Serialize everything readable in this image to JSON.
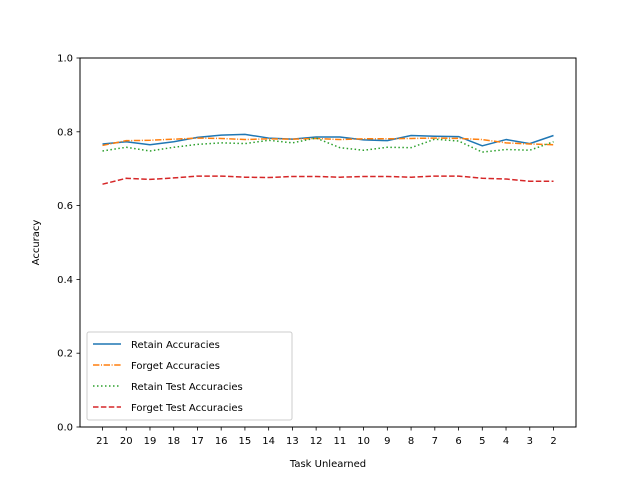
{
  "chart_data": {
    "type": "line",
    "xlabel": "Task Unlearned",
    "ylabel": "Accuracy",
    "categories": [
      "21",
      "20",
      "19",
      "18",
      "17",
      "16",
      "15",
      "14",
      "13",
      "12",
      "11",
      "10",
      "9",
      "8",
      "7",
      "6",
      "5",
      "4",
      "3",
      "2"
    ],
    "ylim": [
      0.0,
      1.0
    ],
    "yticks": [
      "0.0",
      "0.2",
      "0.4",
      "0.6",
      "0.8",
      "1.0"
    ],
    "grid": false,
    "legend_placement": "lower-left",
    "series": [
      {
        "name": "Retain Accuracies",
        "color": "#1f77b4",
        "dash": "solid",
        "values": [
          0.767,
          0.773,
          0.765,
          0.773,
          0.785,
          0.791,
          0.793,
          0.783,
          0.78,
          0.786,
          0.786,
          0.778,
          0.776,
          0.79,
          0.788,
          0.787,
          0.762,
          0.779,
          0.768,
          0.79
        ]
      },
      {
        "name": "Forget Accuracies",
        "color": "#ff7f0e",
        "dash": "dashdot",
        "values": [
          0.763,
          0.776,
          0.777,
          0.78,
          0.783,
          0.782,
          0.779,
          0.781,
          0.78,
          0.782,
          0.779,
          0.781,
          0.781,
          0.782,
          0.783,
          0.782,
          0.779,
          0.77,
          0.767,
          0.765
        ]
      },
      {
        "name": "Retain Test Accuracies",
        "color": "#2ca02c",
        "dash": "dotted",
        "values": [
          0.748,
          0.758,
          0.748,
          0.758,
          0.766,
          0.77,
          0.768,
          0.777,
          0.77,
          0.783,
          0.757,
          0.75,
          0.758,
          0.757,
          0.78,
          0.775,
          0.745,
          0.752,
          0.75,
          0.773
        ]
      },
      {
        "name": "Forget Test Accuracies",
        "color": "#d62728",
        "dash": "dashed",
        "values": [
          0.658,
          0.674,
          0.671,
          0.675,
          0.68,
          0.68,
          0.677,
          0.676,
          0.679,
          0.679,
          0.677,
          0.679,
          0.679,
          0.677,
          0.68,
          0.68,
          0.674,
          0.672,
          0.666,
          0.666
        ]
      }
    ]
  }
}
